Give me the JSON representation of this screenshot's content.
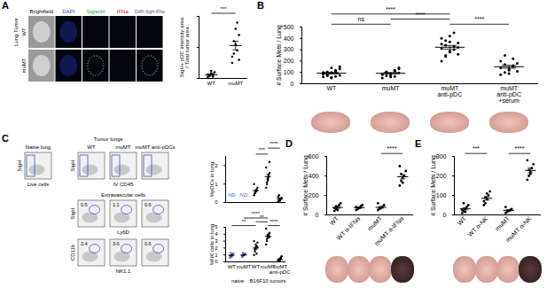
{
  "panel_labels": [
    "A",
    "B",
    "C",
    "D",
    "E"
  ],
  "microscopy": {
    "columns": [
      "Brightfield",
      "DAPI",
      "SiglecH",
      "IFNa",
      "DAPI-SigH-IFNa"
    ],
    "column_colors": [
      "#000000",
      "#2a3fd1",
      "#1a9a3a",
      "#d42020",
      "#6a3fa0"
    ],
    "row_group": "Lung Tumor",
    "rows": [
      "WT",
      "muMT"
    ]
  },
  "flow": {
    "naive_title": "Naive lung",
    "naive_gate": "Live cells",
    "tumor_title": "Tumor lungs",
    "columns": [
      "WT",
      "muMT",
      "muMT anti-pDCs"
    ],
    "row1": {
      "y": "SigH",
      "x": "IV CD45"
    },
    "extravascular": "Extravascular cells",
    "row2": {
      "y": "SigH",
      "x": "Ly6D",
      "gates": [
        0.5,
        1.1,
        0.6
      ]
    },
    "row3": {
      "y": "CD11b",
      "x": "NK1.1",
      "gates": [
        2.4,
        3.6,
        0.6
      ]
    }
  },
  "chart_data": [
    {
      "type": "scatter",
      "ylabel": "SigH+ pDC intensity area\n/ Total tumor area",
      "categories": [
        "WT",
        "muMT"
      ],
      "points": [
        [
          0.02,
          0.05,
          0.08,
          0.03,
          0.1,
          0.06,
          0.04,
          0.12,
          0.07
        ],
        [
          0.25,
          0.4,
          0.55,
          0.9,
          0.7,
          0.35,
          0.6,
          0.8,
          0.45,
          0.3
        ]
      ],
      "mean": [
        0.06,
        0.53
      ],
      "sem": [
        0.01,
        0.07
      ],
      "ylim": [
        0,
        1
      ],
      "yticks": [
        0,
        0.5,
        1
      ],
      "tick_labels": "x",
      "color": "#000000",
      "significance": [
        {
          "from": 0,
          "to": 1,
          "label": "***"
        }
      ]
    },
    {
      "type": "scatter",
      "ylabel": "# Surface Mets / Lung",
      "categories": [
        "WT",
        "muMT",
        "muMT\nanti-pDC",
        "muMT\nanti-pDC\n+serum"
      ],
      "points": [
        [
          60,
          80,
          100,
          120,
          150,
          90,
          70,
          50,
          110,
          130,
          85,
          95,
          140,
          65,
          75,
          100,
          105,
          55
        ],
        [
          50,
          70,
          90,
          110,
          130,
          80,
          100,
          60,
          120,
          95,
          85,
          105,
          75,
          65,
          140
        ],
        [
          200,
          250,
          280,
          300,
          320,
          350,
          380,
          420,
          450,
          260,
          310,
          340,
          290,
          330,
          360,
          400,
          240,
          370
        ],
        [
          80,
          100,
          120,
          150,
          180,
          200,
          250,
          130,
          160,
          110,
          140,
          170,
          90,
          220
        ]
      ],
      "mean": [
        93,
        92,
        322,
        150
      ],
      "sem": [
        7,
        7,
        16,
        13
      ],
      "ylim": [
        0,
        500
      ],
      "yticks": [
        0,
        100,
        200,
        300,
        400,
        500
      ],
      "color": "#000000",
      "significance": [
        {
          "from": 0,
          "to": 1,
          "label": "ns"
        },
        {
          "from": 2,
          "to": 3,
          "label": "****"
        },
        {
          "from": 1,
          "to": 2,
          "label": "****"
        },
        {
          "from": 0,
          "to": 2,
          "label": "****"
        }
      ]
    },
    {
      "type": "scatter",
      "ylabel": "%pDCs in lung",
      "categories": [
        null,
        null,
        null,
        null,
        null
      ],
      "points": [
        [],
        [],
        [
          0.4,
          0.5,
          0.6,
          0.7,
          0.8,
          1.0,
          0.5,
          0.6,
          0.65
        ],
        [
          0.8,
          1.0,
          1.2,
          1.4,
          1.6,
          1.9,
          1.1,
          1.3,
          1.5,
          2.2
        ],
        [
          0.05,
          0.1,
          0.15,
          0.2,
          0.25,
          0.3,
          0.4,
          0.1,
          0.2
        ]
      ],
      "mean": [
        null,
        null,
        0.64,
        1.4,
        0.19
      ],
      "sem": [
        null,
        null,
        0.06,
        0.13,
        0.04
      ],
      "ylim": [
        0,
        2.5
      ],
      "yticks": [
        0,
        1,
        2
      ],
      "color": "#000000",
      "annotations": [
        {
          "category": 0,
          "text": "ND"
        },
        {
          "category": 1,
          "text": "ND"
        }
      ],
      "significance": [
        {
          "from": 2,
          "to": 3,
          "label": "***"
        },
        {
          "from": 3,
          "to": 4,
          "label": "****"
        }
      ]
    },
    {
      "type": "scatter",
      "ylabel": "%NK cells in lung",
      "categories": [
        "WT",
        "muMT",
        "WT",
        "muMT",
        "muMT\nanti-pDC"
      ],
      "points": [
        [
          0.6,
          0.8,
          1.0,
          1.1,
          1.2,
          0.9,
          1.3,
          0.7
        ],
        [
          0.7,
          0.8,
          1.0,
          1.1,
          1.2,
          0.9,
          1.3
        ],
        [
          1.0,
          1.5,
          2.0,
          2.3,
          2.8,
          3.0,
          1.8,
          2.5,
          1.2,
          2.1
        ],
        [
          2.5,
          3.0,
          3.5,
          3.8,
          4.2,
          4.8,
          3.3,
          3.9,
          4.0,
          3.6
        ],
        [
          0.1,
          0.2,
          0.3,
          0.5,
          0.8,
          0.2,
          0.4,
          0.15,
          0.6
        ]
      ],
      "mean": [
        0.95,
        1.0,
        2.0,
        3.7,
        0.36
      ],
      "sem": [
        0.08,
        0.08,
        0.2,
        0.2,
        0.08
      ],
      "ylim": [
        0,
        5
      ],
      "yticks": [
        0,
        1,
        2,
        3,
        4,
        5
      ],
      "colors": [
        "#4a6fc0",
        "#4a6fc0",
        "#000000",
        "#000000",
        "#000000"
      ],
      "groups": [
        {
          "label": "naive",
          "from": 0,
          "to": 1
        },
        {
          "label": "B16F10 tumors",
          "from": 2,
          "to": 4
        }
      ],
      "significance": [
        {
          "from": 0,
          "to": 2,
          "label": "**"
        },
        {
          "from": 2,
          "to": 3,
          "label": "**"
        },
        {
          "from": 3,
          "to": 4,
          "label": "****"
        },
        {
          "from": 1,
          "to": 3,
          "label": "****"
        }
      ]
    },
    {
      "type": "scatter",
      "ylabel": "# Surface Mets / Lung",
      "categories": [
        "WT",
        "WT α-IFNα",
        "muMT",
        "muMT α-IFNα"
      ],
      "points": [
        [
          40,
          60,
          80,
          100,
          120,
          70,
          90,
          50
        ],
        [
          50,
          60,
          70,
          90,
          100,
          80,
          65
        ],
        [
          50,
          60,
          70,
          80,
          100,
          120,
          65
        ],
        [
          300,
          350,
          380,
          400,
          450,
          500,
          420,
          330
        ]
      ],
      "mean": [
        76,
        74,
        78,
        391
      ],
      "sem": [
        9,
        7,
        9,
        22
      ],
      "ylim": [
        0,
        600
      ],
      "yticks": [
        0,
        200,
        400,
        600
      ],
      "color": "#000000",
      "significance": [
        {
          "from": 2,
          "to": 3,
          "label": "****"
        }
      ]
    },
    {
      "type": "scatter",
      "ylabel": "# Surface Mets / Lung",
      "categories": [
        "WT",
        "WT α-NK",
        "muMT",
        "muMT α-NK"
      ],
      "points": [
        [
          10,
          20,
          30,
          40,
          50,
          25,
          60,
          15
        ],
        [
          50,
          60,
          80,
          100,
          120,
          70,
          90,
          110
        ],
        [
          10,
          15,
          20,
          25,
          30,
          40,
          20
        ],
        [
          180,
          200,
          220,
          240,
          260,
          280,
          230,
          210
        ]
      ],
      "mean": [
        31,
        85,
        23,
        228
      ],
      "sem": [
        6,
        9,
        4,
        12
      ],
      "ylim": [
        0,
        300
      ],
      "yticks": [
        0,
        100,
        200,
        300
      ],
      "color": "#000000",
      "significance": [
        {
          "from": 0,
          "to": 1,
          "label": "***"
        },
        {
          "from": 2,
          "to": 3,
          "label": "****"
        }
      ]
    }
  ]
}
